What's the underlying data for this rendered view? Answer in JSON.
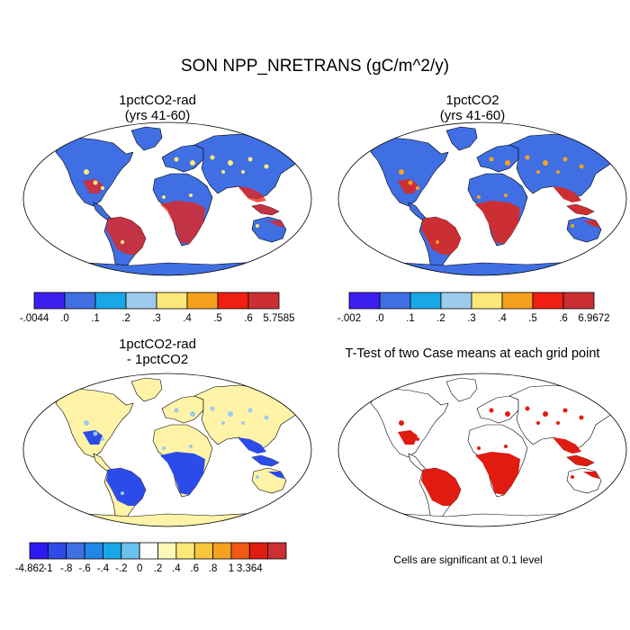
{
  "title": "SON NPP_NRETRANS (gC/m^2/y)",
  "panels": [
    {
      "id": "p1",
      "title_line1": "1pctCO2-rad",
      "title_line2": "(yrs 41-60)"
    },
    {
      "id": "p2",
      "title_line1": "1pctCO2",
      "title_line2": "(yrs 41-60)"
    },
    {
      "id": "p3",
      "title_line1": "1pctCO2-rad",
      "title_line2": "- 1pctCO2"
    },
    {
      "id": "p4",
      "title_line1": "T-Test of two Case means at each grid point",
      "title_line2": ""
    }
  ],
  "colorbars": [
    {
      "id": "cb1",
      "colors": [
        "#3c1ef0",
        "#3f6fe2",
        "#18a8e8",
        "#9ccbec",
        "#fce97a",
        "#f6a11e",
        "#f01f12",
        "#cc2f33"
      ],
      "labels": [
        "-.0044",
        ".0",
        ".1",
        ".2",
        ".3",
        ".4",
        ".5",
        ".6",
        "5.7585"
      ]
    },
    {
      "id": "cb2",
      "colors": [
        "#3c1ef0",
        "#3f6fe2",
        "#18a8e8",
        "#9ccbec",
        "#fce97a",
        "#f6a11e",
        "#f01f12",
        "#cc2f33"
      ],
      "labels": [
        "-.002",
        ".0",
        ".1",
        ".2",
        ".3",
        ".4",
        ".5",
        ".6",
        "6.9672"
      ]
    },
    {
      "id": "cb3",
      "colors": [
        "#2c1af0",
        "#2d4be8",
        "#3f6fe2",
        "#2186e6",
        "#18a8e8",
        "#6cc2ee",
        "#ffffff",
        "#fff9b8",
        "#fce97a",
        "#f9c53a",
        "#f6a11e",
        "#f05a14",
        "#e01b10",
        "#cc2f33"
      ],
      "labels": [
        "-4.862",
        "-1",
        "-.8",
        "-.6",
        "-.4",
        "-.2",
        "0",
        ".2",
        ".4",
        ".6",
        ".8",
        "1",
        "3.364"
      ]
    }
  ],
  "significance_note": "Cells are significant at 0.1 level"
}
